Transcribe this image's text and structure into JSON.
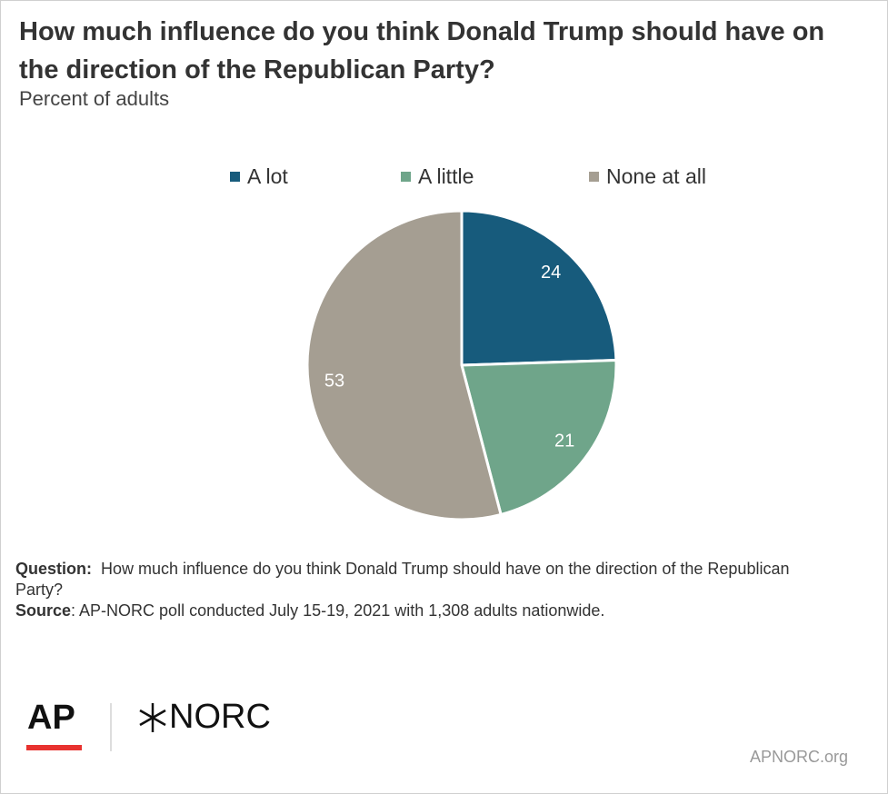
{
  "chart_data": {
    "type": "pie",
    "title": "How much influence do you think Donald Trump should have on the direction of the Republican Party?",
    "subtitle": "Percent of adults",
    "categories": [
      "A lot",
      "A little",
      "None at all"
    ],
    "values": [
      24,
      21,
      53
    ],
    "colors": [
      "#175b7c",
      "#6fa58a",
      "#a59e92"
    ],
    "legend": "top"
  },
  "footer": {
    "question_label": "Question:",
    "question": "How much influence do you think Donald Trump should have on the direction of the Republican Party?",
    "source_label": "Source",
    "source": ": AP-NORC poll conducted July 15-19, 2021 with 1,308 adults nationwide.",
    "logo_ap": "AP",
    "logo_norc": "NORC",
    "website": "APNORC.org"
  }
}
